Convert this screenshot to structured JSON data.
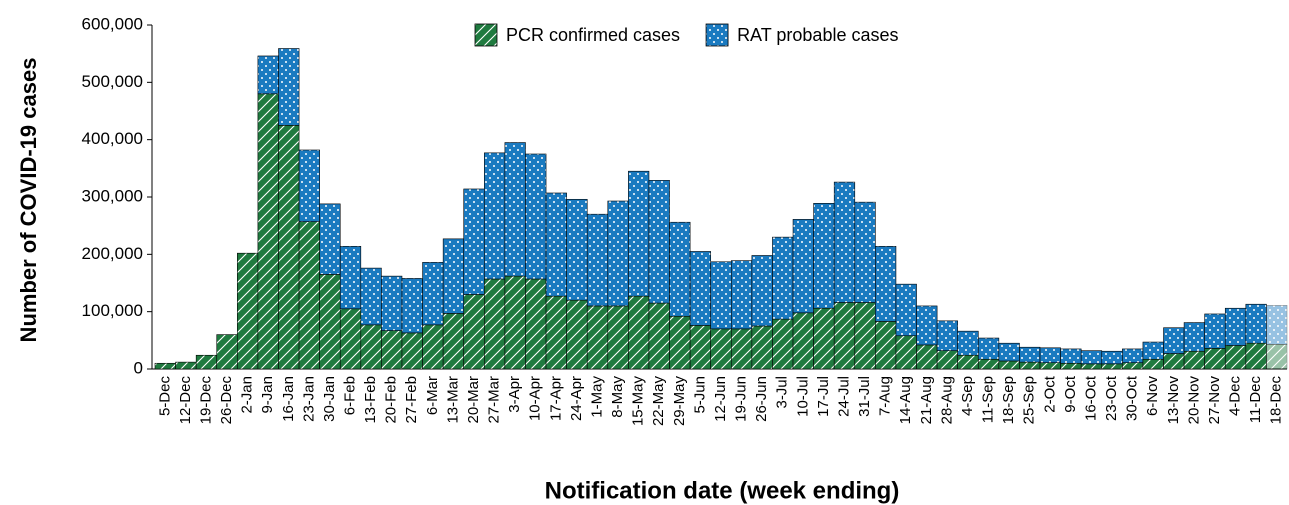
{
  "chart_data": {
    "type": "stacked_bar",
    "xlabel": "Notification date (week ending)",
    "ylabel": "Number of COVID-19 cases",
    "categories": [
      "5-Dec",
      "12-Dec",
      "19-Dec",
      "26-Dec",
      "2-Jan",
      "9-Jan",
      "16-Jan",
      "23-Jan",
      "30-Jan",
      "6-Feb",
      "13-Feb",
      "20-Feb",
      "27-Feb",
      "6-Mar",
      "13-Mar",
      "20-Mar",
      "27-Mar",
      "3-Apr",
      "10-Apr",
      "17-Apr",
      "24-Apr",
      "1-May",
      "8-May",
      "15-May",
      "22-May",
      "29-May",
      "5-Jun",
      "12-Jun",
      "19-Jun",
      "26-Jun",
      "3-Jul",
      "10-Jul",
      "17-Jul",
      "24-Jul",
      "31-Jul",
      "7-Aug",
      "14-Aug",
      "21-Aug",
      "28-Aug",
      "4-Sep",
      "11-Sep",
      "18-Sep",
      "25-Sep",
      "2-Oct",
      "9-Oct",
      "16-Oct",
      "23-Oct",
      "30-Oct",
      "6-Nov",
      "13-Nov",
      "20-Nov",
      "27-Nov",
      "4-Dec",
      "11-Dec",
      "18-Dec"
    ],
    "series": [
      {
        "name": "PCR confirmed cases",
        "color": "#1f7a3f",
        "pattern": "diagonal",
        "values": [
          10000,
          12000,
          24000,
          60000,
          202000,
          480000,
          425000,
          257000,
          165000,
          105000,
          77000,
          67000,
          63000,
          77000,
          97000,
          130000,
          157000,
          162000,
          157000,
          127000,
          120000,
          110000,
          110000,
          127000,
          115000,
          92000,
          76000,
          70000,
          70000,
          75000,
          87000,
          98000,
          106000,
          116000,
          116000,
          83000,
          58000,
          42000,
          32000,
          24000,
          17000,
          14000,
          12000,
          11000,
          10000,
          9000,
          9000,
          11000,
          17000,
          27000,
          31000,
          36000,
          41000,
          45000,
          43000
        ]
      },
      {
        "name": "RAT probable cases",
        "color": "#1a7ac0",
        "pattern": "dots",
        "values": [
          0,
          0,
          0,
          0,
          0,
          66000,
          134000,
          125000,
          123000,
          109000,
          99000,
          95000,
          95000,
          109000,
          130000,
          184000,
          220000,
          233000,
          218000,
          180000,
          176000,
          160000,
          183000,
          218000,
          214000,
          164000,
          129000,
          117000,
          119000,
          123000,
          143000,
          163000,
          183000,
          210000,
          175000,
          131000,
          90000,
          68000,
          52000,
          42000,
          37000,
          31000,
          26000,
          26000,
          25000,
          23000,
          22000,
          24000,
          30000,
          45000,
          50000,
          60000,
          65000,
          68000,
          68000
        ]
      }
    ],
    "ylim": [
      0,
      600000
    ],
    "yticks": [
      0,
      {
        "value": 100000,
        "label": "100,000"
      },
      {
        "value": 200000,
        "label": "200,000"
      },
      {
        "value": 300000,
        "label": "300,000"
      },
      {
        "value": 400000,
        "label": "400,000"
      },
      {
        "value": 500000,
        "label": "500,000"
      },
      {
        "value": 600000,
        "label": "600,000"
      }
    ],
    "grid": false,
    "legend": "top",
    "faded_last_category": true
  }
}
